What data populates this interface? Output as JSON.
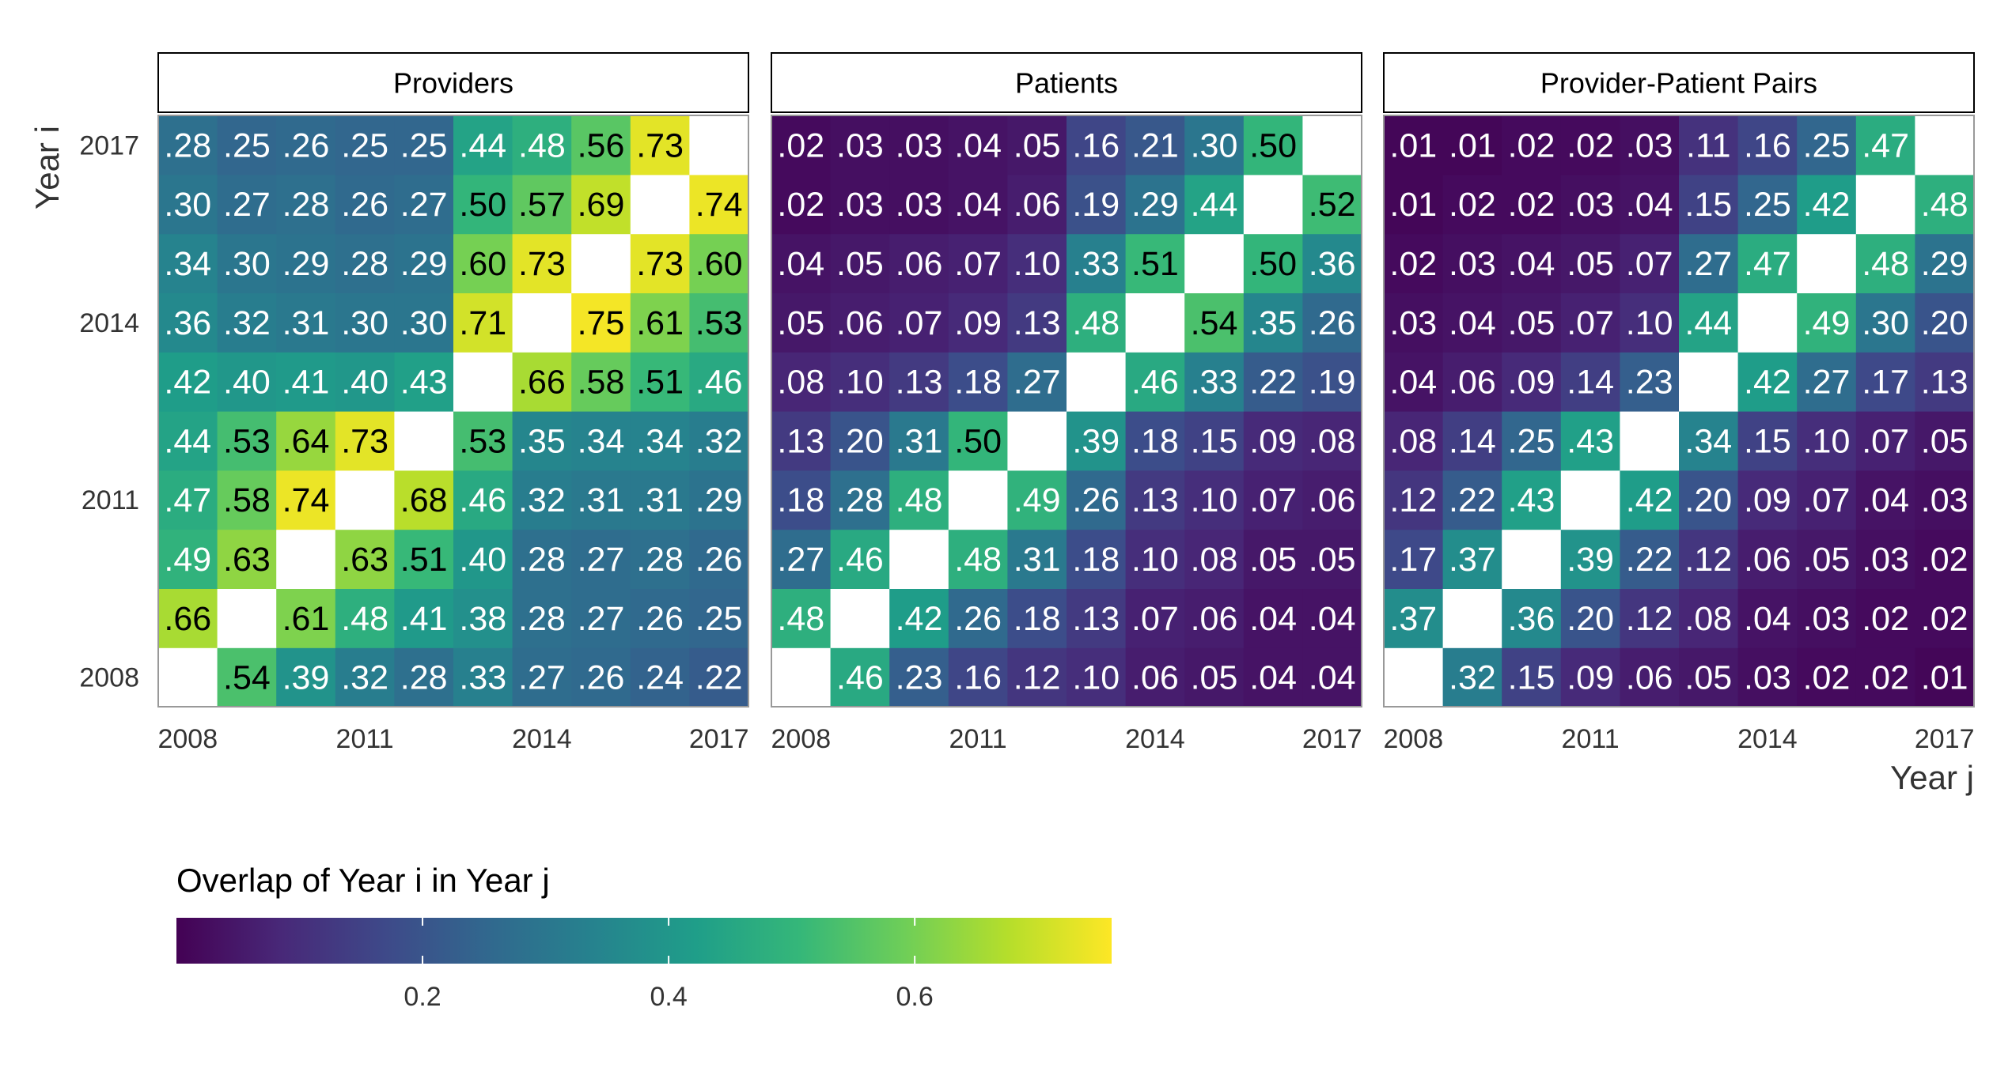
{
  "chart_data": {
    "type": "heatmap",
    "y_axis_label": "Year i",
    "x_axis_label": "Year j",
    "years": [
      2008,
      2009,
      2010,
      2011,
      2012,
      2013,
      2014,
      2015,
      2016,
      2017
    ],
    "tick_labels": [
      "2008",
      "2011",
      "2014",
      "2017"
    ],
    "value_format": "leading-dot, two decimals; diagonal empty",
    "legend": {
      "title": "Overlap of Year i in Year j",
      "ticks": [
        "0.2",
        "0.4",
        "0.6"
      ],
      "tick_values": [
        0.2,
        0.4,
        0.6
      ],
      "range": [
        0.0,
        0.76
      ],
      "colormap": "viridis",
      "placement": "bottom-left"
    },
    "colors": {
      "viridis_stops": [
        "#440154",
        "#482878",
        "#3e4989",
        "#31688e",
        "#26828e",
        "#1f9e89",
        "#35b779",
        "#6ece58",
        "#b5de2b",
        "#fde725"
      ],
      "empty_cell": "#ffffff",
      "panel_border": "#999999",
      "label_dark": "#000000",
      "label_light": "#ffffff"
    },
    "panels": [
      {
        "title": "Providers",
        "rows": [
          [
            "",
            ".54",
            ".39",
            ".32",
            ".28",
            ".33",
            ".27",
            ".26",
            ".24",
            ".22"
          ],
          [
            ".66",
            "",
            ".61",
            ".48",
            ".41",
            ".38",
            ".28",
            ".27",
            ".26",
            ".25"
          ],
          [
            ".49",
            ".63",
            "",
            ".63",
            ".51",
            ".40",
            ".28",
            ".27",
            ".28",
            ".26"
          ],
          [
            ".47",
            ".58",
            ".74",
            "",
            ".68",
            ".46",
            ".32",
            ".31",
            ".31",
            ".29"
          ],
          [
            ".44",
            ".53",
            ".64",
            ".73",
            "",
            ".53",
            ".35",
            ".34",
            ".34",
            ".32"
          ],
          [
            ".42",
            ".40",
            ".41",
            ".40",
            ".43",
            "",
            ".66",
            ".58",
            ".51",
            ".46"
          ],
          [
            ".36",
            ".32",
            ".31",
            ".30",
            ".30",
            ".71",
            "",
            ".75",
            ".61",
            ".53"
          ],
          [
            ".34",
            ".30",
            ".29",
            ".28",
            ".29",
            ".60",
            ".73",
            "",
            ".73",
            ".60"
          ],
          [
            ".30",
            ".27",
            ".28",
            ".26",
            ".27",
            ".50",
            ".57",
            ".69",
            "",
            ".74"
          ],
          [
            ".28",
            ".25",
            ".26",
            ".25",
            ".25",
            ".44",
            ".48",
            ".56",
            ".73",
            ""
          ]
        ]
      },
      {
        "title": "Patients",
        "rows": [
          [
            "",
            ".46",
            ".23",
            ".16",
            ".12",
            ".10",
            ".06",
            ".05",
            ".04",
            ".04"
          ],
          [
            ".48",
            "",
            ".42",
            ".26",
            ".18",
            ".13",
            ".07",
            ".06",
            ".04",
            ".04"
          ],
          [
            ".27",
            ".46",
            "",
            ".48",
            ".31",
            ".18",
            ".10",
            ".08",
            ".05",
            ".05"
          ],
          [
            ".18",
            ".28",
            ".48",
            "",
            ".49",
            ".26",
            ".13",
            ".10",
            ".07",
            ".06"
          ],
          [
            ".13",
            ".20",
            ".31",
            ".50",
            "",
            ".39",
            ".18",
            ".15",
            ".09",
            ".08"
          ],
          [
            ".08",
            ".10",
            ".13",
            ".18",
            ".27",
            "",
            ".46",
            ".33",
            ".22",
            ".19"
          ],
          [
            ".05",
            ".06",
            ".07",
            ".09",
            ".13",
            ".48",
            "",
            ".54",
            ".35",
            ".26"
          ],
          [
            ".04",
            ".05",
            ".06",
            ".07",
            ".10",
            ".33",
            ".51",
            "",
            ".50",
            ".36"
          ],
          [
            ".02",
            ".03",
            ".03",
            ".04",
            ".06",
            ".19",
            ".29",
            ".44",
            "",
            ".52"
          ],
          [
            ".02",
            ".03",
            ".03",
            ".04",
            ".05",
            ".16",
            ".21",
            ".30",
            ".50",
            ""
          ]
        ]
      },
      {
        "title": "Provider-Patient Pairs",
        "rows": [
          [
            "",
            ".32",
            ".15",
            ".09",
            ".06",
            ".05",
            ".03",
            ".02",
            ".02",
            ".01"
          ],
          [
            ".37",
            "",
            ".36",
            ".20",
            ".12",
            ".08",
            ".04",
            ".03",
            ".02",
            ".02"
          ],
          [
            ".17",
            ".37",
            "",
            ".39",
            ".22",
            ".12",
            ".06",
            ".05",
            ".03",
            ".02"
          ],
          [
            ".12",
            ".22",
            ".43",
            "",
            ".42",
            ".20",
            ".09",
            ".07",
            ".04",
            ".03"
          ],
          [
            ".08",
            ".14",
            ".25",
            ".43",
            "",
            ".34",
            ".15",
            ".10",
            ".07",
            ".05"
          ],
          [
            ".04",
            ".06",
            ".09",
            ".14",
            ".23",
            "",
            ".42",
            ".27",
            ".17",
            ".13"
          ],
          [
            ".03",
            ".04",
            ".05",
            ".07",
            ".10",
            ".44",
            "",
            ".49",
            ".30",
            ".20"
          ],
          [
            ".02",
            ".03",
            ".04",
            ".05",
            ".07",
            ".27",
            ".47",
            "",
            ".48",
            ".29"
          ],
          [
            ".01",
            ".02",
            ".02",
            ".03",
            ".04",
            ".15",
            ".25",
            ".42",
            "",
            ".48"
          ],
          [
            ".01",
            ".01",
            ".02",
            ".02",
            ".03",
            ".11",
            ".16",
            ".25",
            ".47",
            ""
          ]
        ]
      }
    ]
  }
}
